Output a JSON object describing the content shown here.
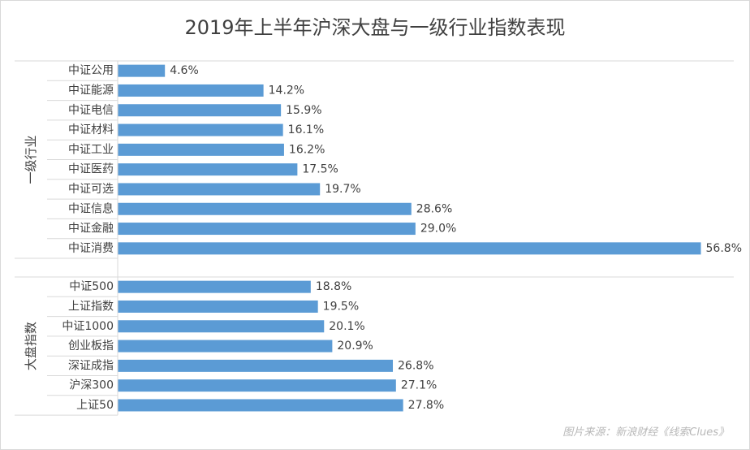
{
  "chart_data": {
    "type": "bar",
    "orientation": "horizontal",
    "title": "2019年上半年沪深大盘与一级行业指数表现",
    "source": "图片来源：新浪财经《线索Clues》",
    "groups": [
      {
        "name": "一级行业",
        "categories": [
          "中证公用",
          "中证能源",
          "中证电信",
          "中证材料",
          "中证工业",
          "中证医药",
          "中证可选",
          "中证信息",
          "中证金融",
          "中证消费"
        ],
        "values": [
          4.6,
          14.2,
          15.9,
          16.1,
          16.2,
          17.5,
          19.7,
          28.6,
          29.0,
          56.8
        ],
        "labels": [
          "4.6%",
          "14.2%",
          "15.9%",
          "16.1%",
          "16.2%",
          "17.5%",
          "19.7%",
          "28.6%",
          "29.0%",
          "56.8%"
        ]
      },
      {
        "name": "大盘指数",
        "categories": [
          "中证500",
          "上证指数",
          "中证1000",
          "创业板指",
          "深证成指",
          "沪深300",
          "上证50"
        ],
        "values": [
          18.8,
          19.5,
          20.1,
          20.9,
          26.8,
          27.1,
          27.8
        ],
        "labels": [
          "18.8%",
          "19.5%",
          "20.1%",
          "20.9%",
          "26.8%",
          "27.1%",
          "27.8%"
        ]
      }
    ],
    "colors": {
      "bar": "#5b9bd5",
      "grid": "#d9d9d9",
      "text": "#404040"
    },
    "grid": false,
    "legend": "none"
  }
}
